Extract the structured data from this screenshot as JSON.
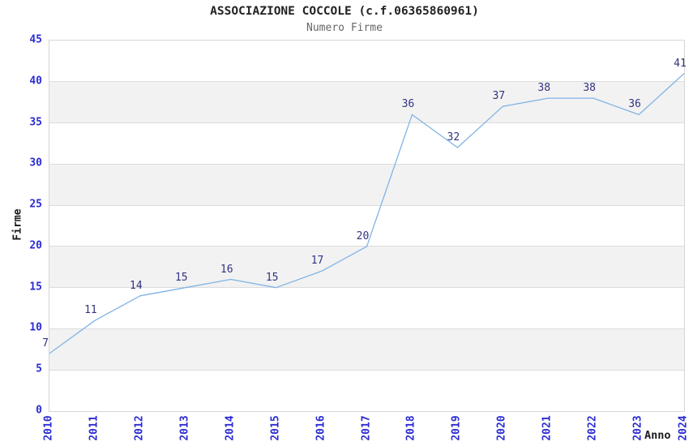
{
  "chart_data": {
    "type": "line",
    "title": "ASSOCIAZIONE COCCOLE (c.f.06365860961)",
    "subtitle": "Numero Firme",
    "xlabel": "Anno",
    "ylabel": "Firme",
    "categories": [
      "2010",
      "2011",
      "2012",
      "2013",
      "2014",
      "2015",
      "2016",
      "2017",
      "2018",
      "2019",
      "2020",
      "2021",
      "2022",
      "2023",
      "2024"
    ],
    "values": [
      7,
      11,
      14,
      15,
      16,
      15,
      17,
      20,
      36,
      32,
      37,
      38,
      38,
      36,
      41
    ],
    "ylim": [
      0,
      45
    ],
    "ytick_step": 5,
    "legend_position": "none",
    "grid": "horizontal gridlines every 5 with alternating gray bands",
    "data_labels_shown": true,
    "colors": {
      "line": "#80b3e6",
      "axis_tick_label": "#2b2bd3",
      "point_label": "#333380",
      "band_gray": "#f2f2f2",
      "gridline": "#dcdcdc",
      "plot_border": "#d6d6d6",
      "title": "#222222",
      "subtitle": "#666666",
      "axis_title": "#1a1a1a",
      "background": "#ffffff"
    }
  }
}
